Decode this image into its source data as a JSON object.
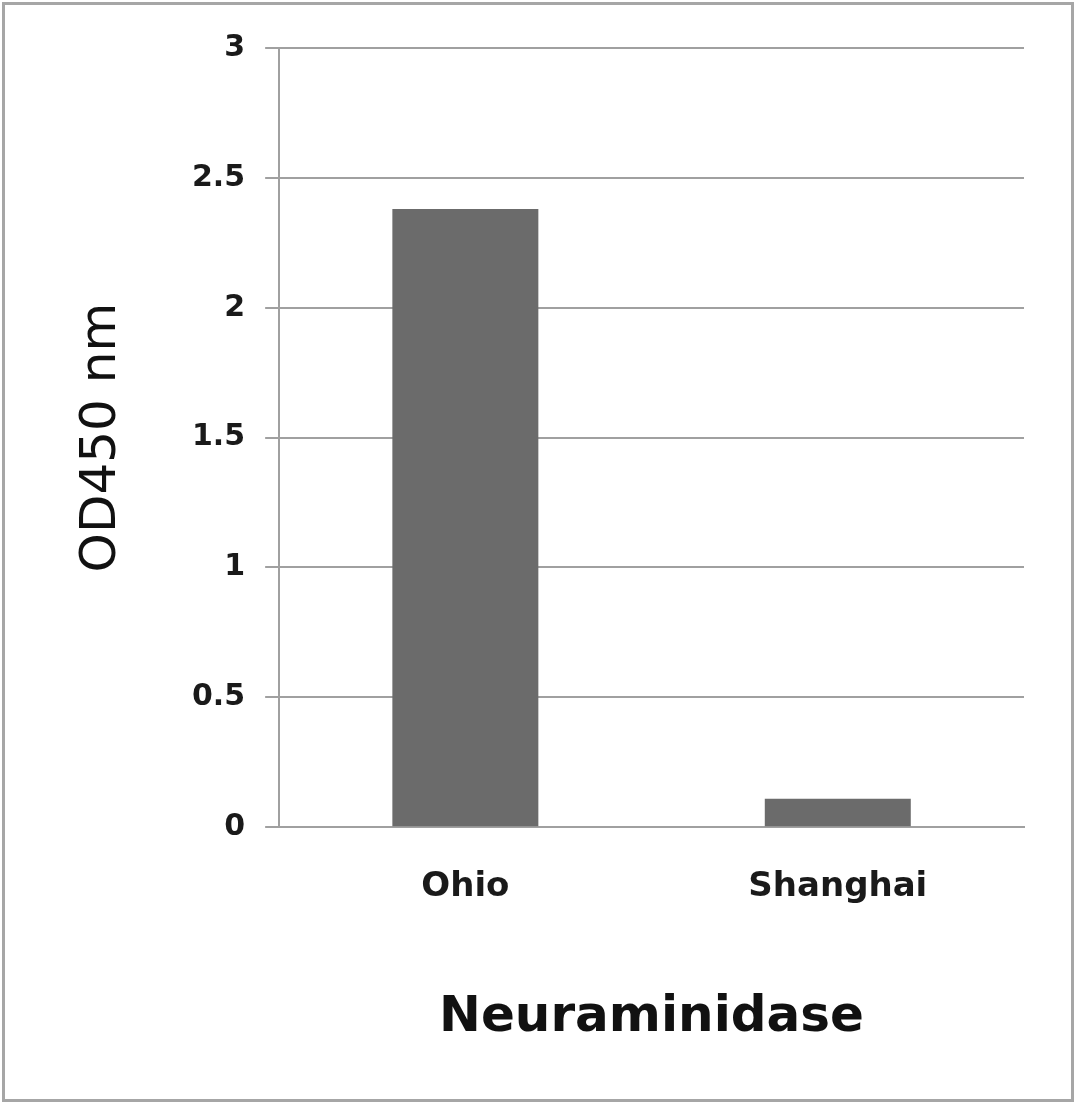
{
  "chart_data": {
    "type": "bar",
    "categories": [
      "Ohio",
      "Shanghai"
    ],
    "values": [
      2.38,
      0.11
    ],
    "color": "#6b6b6b",
    "x_label": "Neuraminidase",
    "y_label": "OD450 nm",
    "ylim": [
      0,
      3
    ],
    "yticks": [
      0,
      0.5,
      1,
      1.5,
      2,
      2.5,
      3
    ],
    "grid": true
  }
}
